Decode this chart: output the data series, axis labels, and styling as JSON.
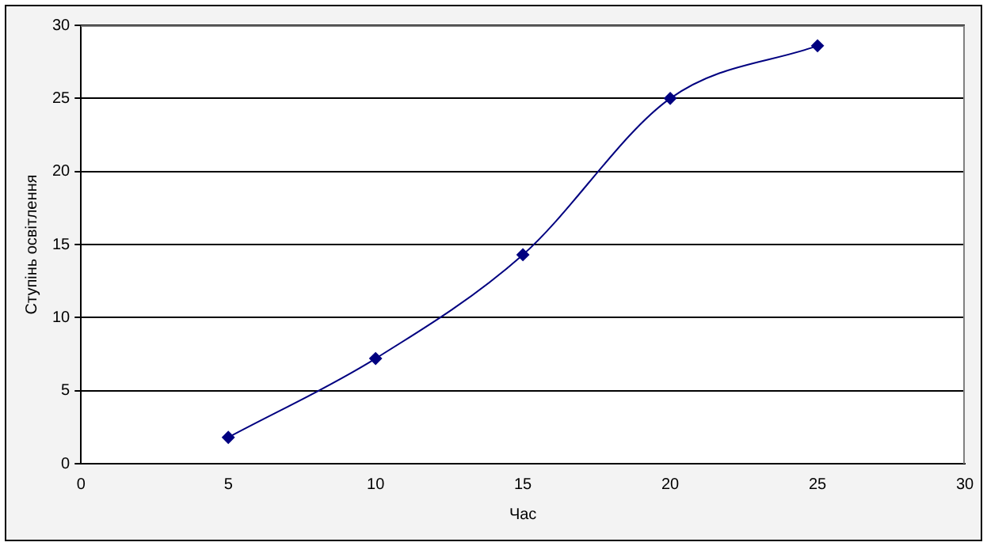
{
  "chart_data": {
    "type": "line",
    "xlabel": "Час",
    "ylabel": "Ступінь освітлення",
    "x": [
      5,
      10,
      15,
      20,
      25
    ],
    "series": [
      {
        "color": "#000080",
        "values": [
          1.8,
          7.2,
          14.3,
          25,
          28.6
        ]
      }
    ],
    "xlim": [
      0,
      30
    ],
    "xticks": [
      0,
      5,
      10,
      15,
      20,
      25,
      30
    ],
    "ylim": [
      0,
      30
    ],
    "yticks": [
      0,
      5,
      10,
      15,
      20,
      25,
      30
    ],
    "grid": "y",
    "legend": false,
    "marker": "diamond",
    "line_style": "solid"
  }
}
